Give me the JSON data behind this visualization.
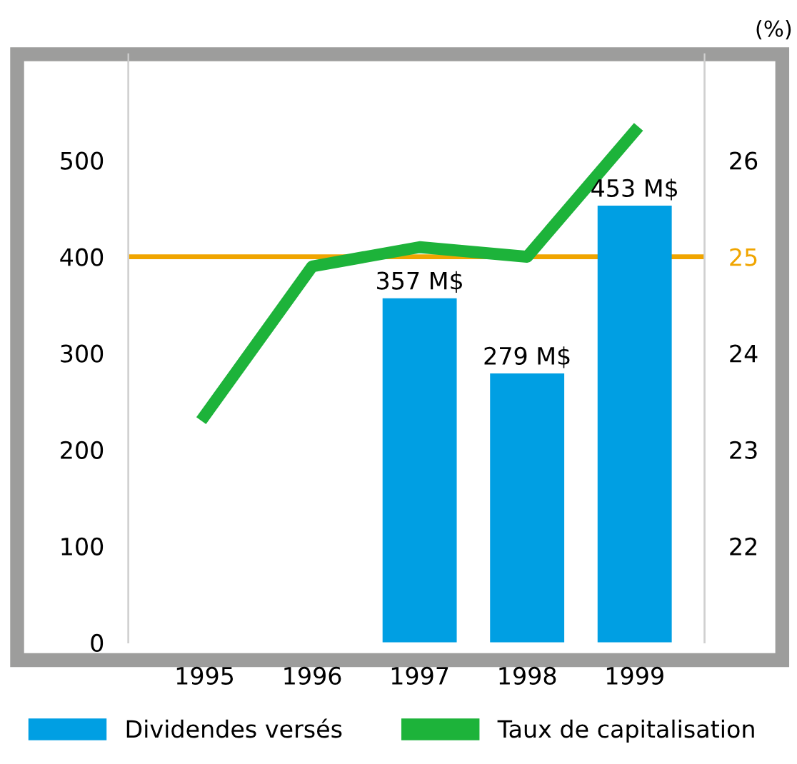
{
  "chart_data": {
    "type": "bar",
    "categories": [
      "1995",
      "1996",
      "1997",
      "1998",
      "1999"
    ],
    "series": [
      {
        "name": "Dividendes versés",
        "color": "#009fe3",
        "values": [
          null,
          null,
          357,
          279,
          453
        ],
        "value_labels": [
          null,
          null,
          "357 M$",
          "279 M$",
          "453 M$"
        ]
      },
      {
        "name": "Taux de capitalisation",
        "type": "line",
        "axis": "y2",
        "color": "#1db33a",
        "values": [
          23.35,
          24.9,
          25.1,
          25.0,
          26.3
        ]
      }
    ],
    "ylim": [
      0,
      610
    ],
    "yticks": [
      0,
      100,
      200,
      300,
      400,
      500
    ],
    "y2lim": [
      21,
      27.1
    ],
    "y2ticks": [
      22,
      23,
      24,
      25,
      26
    ],
    "y2label": "(%)",
    "ref_lines": [
      {
        "axis": "y2",
        "value": 25,
        "color": "#f0a500"
      }
    ],
    "legend": "bottom",
    "grid": false,
    "marker": "none",
    "line_style": "solid"
  }
}
